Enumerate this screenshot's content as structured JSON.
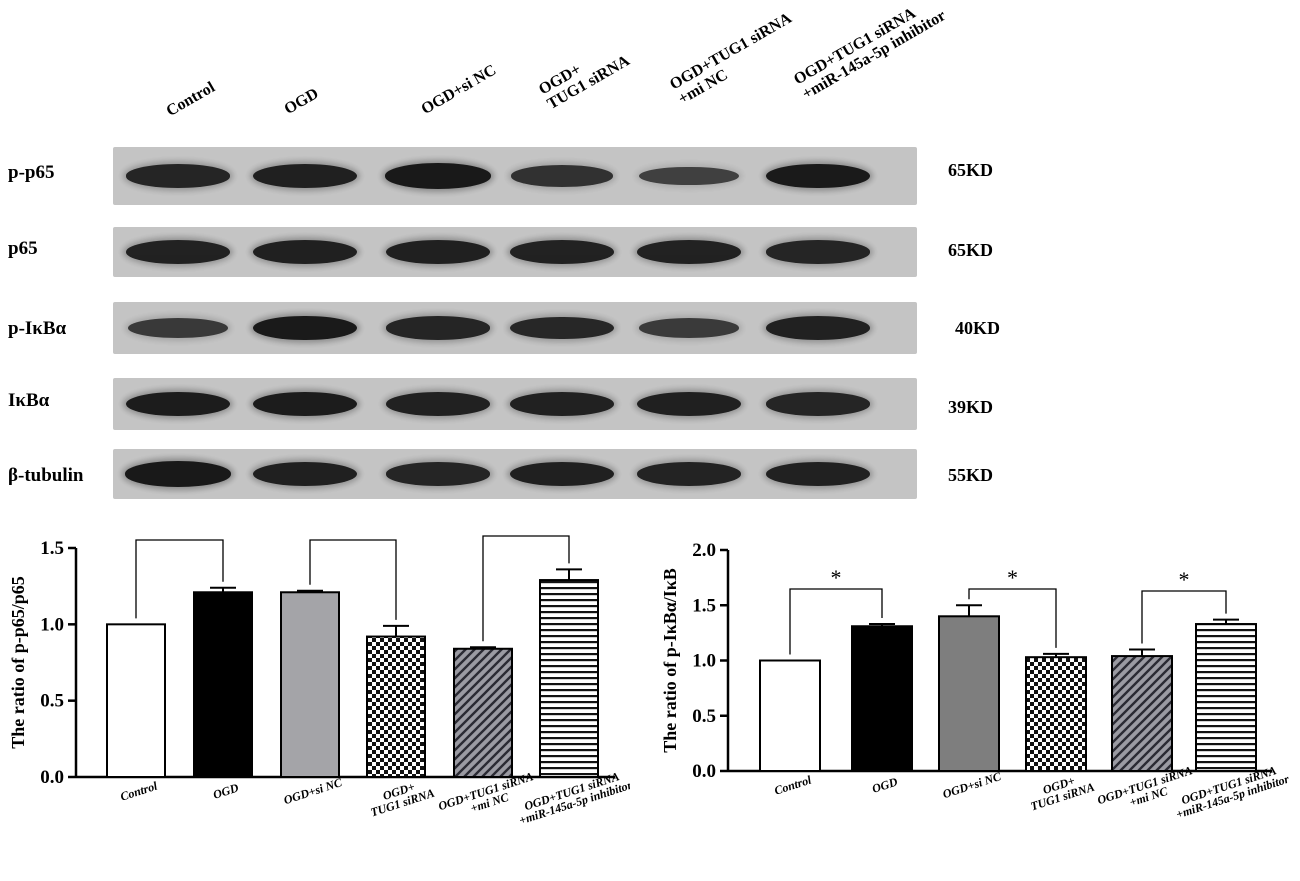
{
  "blot": {
    "lane_headers": [
      {
        "line1": "Control",
        "line2": ""
      },
      {
        "line1": "OGD",
        "line2": ""
      },
      {
        "line1": "OGD+si NC",
        "line2": ""
      },
      {
        "line1": "OGD+",
        "line2": "TUG1 siRNA"
      },
      {
        "line1": "OGD+TUG1 siRNA",
        "line2": "+mi NC"
      },
      {
        "line1": "OGD+TUG1 siRNA",
        "line2": "+miR-145a-5p inhibitor"
      }
    ],
    "rows": [
      {
        "label": "p-p65",
        "kd": "65KD",
        "intensity": [
          0.82,
          0.88,
          0.95,
          0.7,
          0.55,
          0.92
        ]
      },
      {
        "label": "p65",
        "kd": "65KD",
        "intensity": [
          0.85,
          0.88,
          0.88,
          0.85,
          0.85,
          0.82
        ]
      },
      {
        "label": "p-IκBα",
        "kd": "40KD",
        "intensity": [
          0.62,
          0.92,
          0.82,
          0.8,
          0.6,
          0.85
        ]
      },
      {
        "label": "IκBα",
        "kd": "39KD",
        "intensity": [
          0.9,
          0.9,
          0.85,
          0.85,
          0.88,
          0.82
        ]
      },
      {
        "label": "β-tubulin",
        "kd": "55KD",
        "intensity": [
          0.95,
          0.88,
          0.82,
          0.88,
          0.84,
          0.86
        ]
      }
    ],
    "colors": {
      "strip_bg": "#c4c4c4",
      "band": "#141414"
    }
  },
  "chart_data": [
    {
      "type": "bar",
      "ylabel": "The ratio of p-p65/p65",
      "ylim": [
        0,
        1.5
      ],
      "yticks": [
        "0.0",
        "0.5",
        "1.0",
        "1.5"
      ],
      "categories": [
        "Control",
        "OGD",
        "OGD+si NC",
        "OGD+\nTUG1 siRNA",
        "OGD+TUG1 siRNA\n+mi NC",
        "OGD+TUG1 siRNA\n+miR-145a-5p inhibitor"
      ],
      "values": [
        1.0,
        1.21,
        1.21,
        0.92,
        0.84,
        1.29
      ],
      "errors": [
        0.0,
        0.03,
        0.01,
        0.07,
        0.01,
        0.07
      ],
      "fills": [
        "white",
        "black",
        "gray",
        "checker",
        "diagonal",
        "horizontal"
      ],
      "significance": [
        {
          "pair": [
            0,
            1
          ],
          "label": "*"
        },
        {
          "pair": [
            2,
            3
          ],
          "label": "*"
        },
        {
          "pair": [
            4,
            5
          ],
          "label": "*"
        }
      ]
    },
    {
      "type": "bar",
      "ylabel": "The ratio of p-IκBα/IκB",
      "ylim": [
        0,
        2.0
      ],
      "yticks": [
        "0.0",
        "0.5",
        "1.0",
        "1.5",
        "2.0"
      ],
      "categories": [
        "Control",
        "OGD",
        "OGD+si NC",
        "OGD+\nTUG1 siRNA",
        "OGD+TUG1 siRNA\n+mi NC",
        "OGD+TUG1 siRNA\n+miR-145a-5p inhibitor"
      ],
      "values": [
        1.0,
        1.31,
        1.4,
        1.03,
        1.04,
        1.33
      ],
      "errors": [
        0.0,
        0.02,
        0.1,
        0.03,
        0.06,
        0.04
      ],
      "fills": [
        "white",
        "black",
        "darkgray",
        "checker",
        "diagonal",
        "horizontal"
      ],
      "significance": [
        {
          "pair": [
            0,
            1
          ],
          "label": "*"
        },
        {
          "pair": [
            2,
            3
          ],
          "label": "*"
        },
        {
          "pair": [
            4,
            5
          ],
          "label": "*"
        }
      ]
    }
  ]
}
